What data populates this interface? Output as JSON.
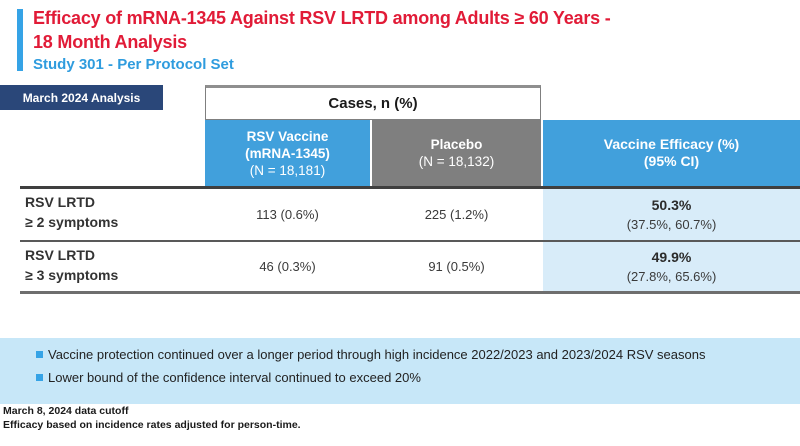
{
  "slide": {
    "title_line1": "Efficacy of mRNA-1345 Against RSV LRTD among Adults ≥ 60 Years -",
    "title_line2": "18 Month Analysis",
    "subtitle": "Study 301 - Per Protocol Set",
    "analysis_badge": "March 2024 Analysis"
  },
  "colors": {
    "title_red": "#e11b37",
    "accent_blue": "#35a3e6",
    "subtitle_blue": "#2f9cde",
    "header_blue": "#41a0dc",
    "placebo_gray": "#7f7f7f",
    "badge_navy": "#2a4779",
    "efficacy_cell_blue": "#d8ecf9",
    "bullet_box_blue": "#c7e7f8"
  },
  "table": {
    "group_header": "Cases, n (%)",
    "columns": {
      "vaccine": {
        "line1": "RSV Vaccine",
        "line2": "(mRNA-1345)",
        "line3": "(N = 18,181)"
      },
      "placebo": {
        "line1": "Placebo",
        "line2": "(N = 18,132)"
      },
      "efficacy": {
        "line1": "Vaccine Efficacy (%)",
        "line2": "(95% CI)"
      }
    },
    "rows": [
      {
        "label_line1": "RSV LRTD",
        "label_line2": "≥ 2 symptoms",
        "vaccine": "113 (0.6%)",
        "placebo": "225 (1.2%)",
        "efficacy_value": "50.3%",
        "efficacy_ci": "(37.5%, 60.7%)"
      },
      {
        "label_line1": "RSV LRTD",
        "label_line2": "≥ 3 symptoms",
        "vaccine": "46 (0.3%)",
        "placebo": "91 (0.5%)",
        "efficacy_value": "49.9%",
        "efficacy_ci": "(27.8%, 65.6%)"
      }
    ]
  },
  "highlights": {
    "bullets": [
      "Vaccine protection continued over a longer period through high incidence 2022/2023 and 2023/2024 RSV seasons",
      "Lower bound of the confidence interval continued to exceed 20%"
    ]
  },
  "footnotes": {
    "line1": "March 8, 2024 data cutoff",
    "line2": "Efficacy based on incidence rates adjusted for person-time."
  }
}
